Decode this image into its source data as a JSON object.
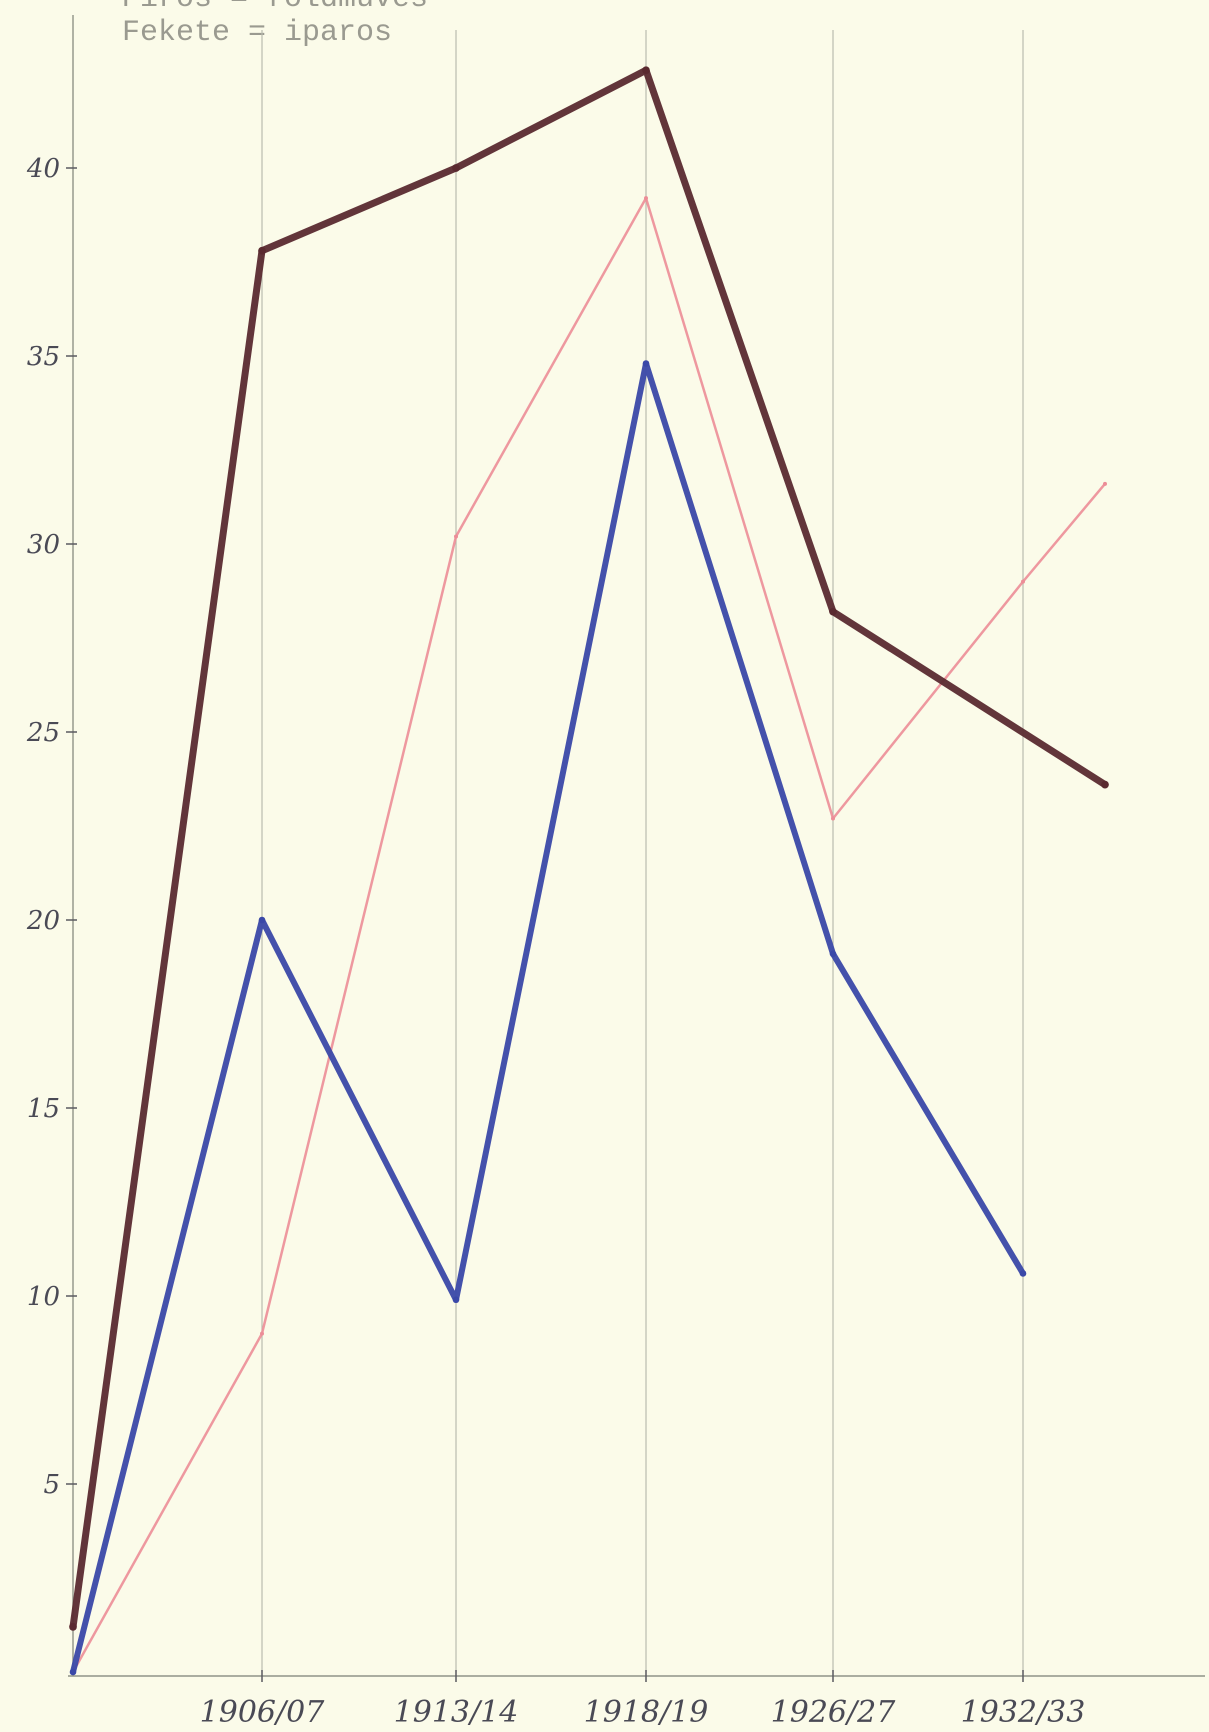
{
  "legend": [
    {
      "text": "Piros = földműves",
      "color": "#e88a92"
    },
    {
      "text": "Fekete = iparos",
      "color": "#5a2a30"
    }
  ],
  "colors": {
    "background": "#fbfbe9",
    "grid": "#b9bcae",
    "text": "#4a4a55"
  },
  "chart_data": {
    "type": "line",
    "title": "",
    "xlabel": "",
    "ylabel": "",
    "categories": [
      "",
      "1906/07",
      "1913/14",
      "1918/19",
      "1926/27",
      "1932/33",
      ""
    ],
    "x_tick_labels": [
      "1906/07",
      "1913/14",
      "1918/19",
      "1926/27",
      "1932/33"
    ],
    "y_ticks": [
      5,
      10,
      15,
      20,
      25,
      30,
      35,
      40
    ],
    "y_tick_labels": [
      "5",
      "10",
      "15",
      "20",
      "25",
      "30",
      "35",
      "40"
    ],
    "ylim": [
      0,
      44
    ],
    "grid": "vertical",
    "legend_position": "top-left",
    "series": [
      {
        "name": "Fekete = iparos",
        "color": "#5a2a30",
        "width": 7,
        "values": [
          1.2,
          37.8,
          40.0,
          42.6,
          28.2,
          null,
          23.6
        ]
      },
      {
        "name": "Piros = földműves",
        "color": "#ec8d97",
        "width": 2.5,
        "values": [
          0,
          9.0,
          30.2,
          39.2,
          22.7,
          29.0,
          31.6
        ]
      },
      {
        "color": "#3a48a8",
        "width": 6,
        "values": [
          0,
          20.0,
          9.9,
          34.8,
          19.1,
          10.6,
          null
        ]
      }
    ]
  }
}
